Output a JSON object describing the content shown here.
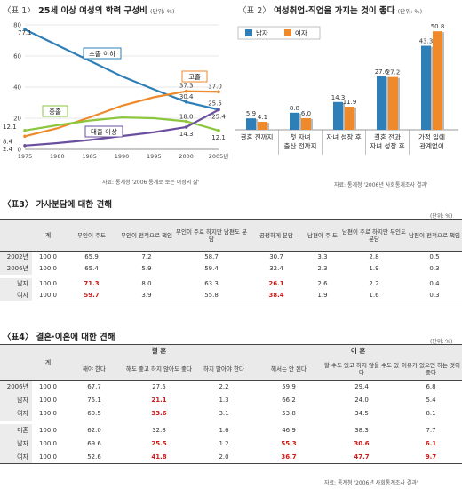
{
  "chart1": {
    "tag": "〈표 1〉",
    "title": "25세 이상 여성의 학력 구성비",
    "unit": "(단위: %)",
    "chart_data": {
      "type": "line",
      "x": [
        1975,
        1980,
        1985,
        1990,
        1995,
        2000,
        2005
      ],
      "x_tick_labels": [
        "1975",
        "1980",
        "1985",
        "1990",
        "1995",
        "2000",
        "2005년"
      ],
      "ylim": [
        0,
        80
      ],
      "y_ticks": [
        0,
        20,
        40,
        60,
        80
      ],
      "series": [
        {
          "name": "초졸 이하",
          "color": "#2e7fb8",
          "values": [
            77.1,
            67,
            57,
            47,
            38.5,
            30.4,
            25.5
          ]
        },
        {
          "name": "고졸",
          "color": "#ee8a2c",
          "values": [
            8.4,
            13.5,
            20.5,
            28,
            33.5,
            37.3,
            37.0
          ]
        },
        {
          "name": "중졸",
          "color": "#8cc63f",
          "values": [
            12.1,
            15.5,
            18.5,
            20.5,
            20,
            18.0,
            12.1
          ]
        },
        {
          "name": "대졸 이상",
          "color": "#6a4f9e",
          "values": [
            2.4,
            4,
            6,
            8.5,
            11,
            14.3,
            25.4
          ]
        }
      ],
      "data_labels": {
        "left": [
          "77.1",
          "12.1",
          "8.4",
          "2.4"
        ],
        "y2000": [
          "37.3",
          "30.4",
          "18.0",
          "14.3"
        ],
        "y2005": [
          "37.0",
          "25.5",
          "25.4",
          "12.1"
        ]
      }
    }
  },
  "chart2": {
    "tag": "〈표 2〉",
    "title": "여성취업-직업을 가지는 것이 좋다",
    "unit": "(단위: %)",
    "note": "자료: 통계청 '2006년 사회통계조사 결과'",
    "chart_data": {
      "type": "bar",
      "categories": [
        [
          "결혼 전까지"
        ],
        [
          "첫 자녀",
          "출산 전까지"
        ],
        [
          "자녀 성장 후"
        ],
        [
          "결혼 전과",
          "자녀 성장 후"
        ],
        [
          "가정 일에",
          "관계없이"
        ]
      ],
      "series": [
        {
          "name": "남자",
          "color": "#2e7fb8",
          "values": [
            5.9,
            8.8,
            14.3,
            27.6,
            43.3
          ]
        },
        {
          "name": "여자",
          "color": "#ee8a2c",
          "values": [
            4.1,
            6.0,
            11.9,
            27.2,
            50.8
          ]
        }
      ],
      "value_labels": [
        [
          "5.9",
          "4.1"
        ],
        [
          "8.8",
          "6.0"
        ],
        [
          "14.3",
          "11.9"
        ],
        [
          "27.6",
          "27.2"
        ],
        [
          "43.3",
          "50.8"
        ]
      ],
      "ylim": [
        0,
        55
      ],
      "legend": "top-left"
    }
  },
  "note1": "자료: 통계청 '2006 통계로 보는 여성의 삶'",
  "table3": {
    "title": "〈표3〉 가사분담에 대한 견해",
    "unit": "(단위: %)",
    "headers": [
      "",
      "계",
      "부인이 주도",
      "부인이 전적으로 책임",
      "부인이 주로 하지만 남편도 분담",
      "공평하게 분담",
      "남편이 주 도",
      "남편이 주로 하지만 부인도 분담",
      "남편이 전적으로 책임"
    ],
    "rows": [
      {
        "label": "2002년",
        "cells": [
          "100.0",
          "65.9",
          "7.2",
          "58.7",
          "30.7",
          "3.3",
          "2.8",
          "0.5"
        ]
      },
      {
        "label": "2006년",
        "cells": [
          "100.0",
          "65.4",
          "5.9",
          "59.4",
          "32.4",
          "2.3",
          "1.9",
          "0.3"
        ]
      },
      {
        "label": "남자",
        "cells": [
          "100.0",
          "71.3",
          "8.0",
          "63.3",
          "26.1",
          "2.6",
          "2.2",
          "0.4"
        ]
      },
      {
        "label": "여자",
        "cells": [
          "100.0",
          "59.7",
          "3.9",
          "55.8",
          "38.4",
          "1.9",
          "1.6",
          "0.3"
        ]
      }
    ]
  },
  "table4": {
    "title": "〈표4〉 결혼·이혼에 대한 견해",
    "unit": "(단위: %)",
    "total_header": "계",
    "group_headers": [
      "결 혼",
      "이 혼"
    ],
    "sub_headers": [
      "해야 한다",
      "해도 좋고 하지 않아도 좋다",
      "하지 말아야 한다",
      "해서는 안 된다",
      "할 수도 있고 하지 않을 수도 있다",
      "이유가 있으면 하는 것이 좋다"
    ],
    "rows": [
      {
        "label": "2006년",
        "cells": [
          "100.0",
          "67.7",
          "27.5",
          "2.2",
          "59.9",
          "29.4",
          "6.8"
        ]
      },
      {
        "label": "남자",
        "cells": [
          "100.0",
          "75.1",
          "21.1",
          "1.3",
          "66.2",
          "24.0",
          "5.4"
        ]
      },
      {
        "label": "여자",
        "cells": [
          "100.0",
          "60.5",
          "33.6",
          "3.1",
          "53.8",
          "34.5",
          "8.1"
        ]
      },
      {
        "label": "미혼",
        "cells": [
          "100.0",
          "62.0",
          "32.8",
          "1.6",
          "46.9",
          "38.3",
          "7.7"
        ]
      },
      {
        "label": "남자",
        "cells": [
          "100.0",
          "69.6",
          "25.5",
          "1.2",
          "55.3",
          "30.6",
          "6.1"
        ]
      },
      {
        "label": "여자",
        "cells": [
          "100.0",
          "52.6",
          "41.8",
          "2.0",
          "36.7",
          "47.7",
          "9.7"
        ]
      }
    ],
    "note": "자료: 통계청 '2006년 사회통계조사 결과'"
  }
}
